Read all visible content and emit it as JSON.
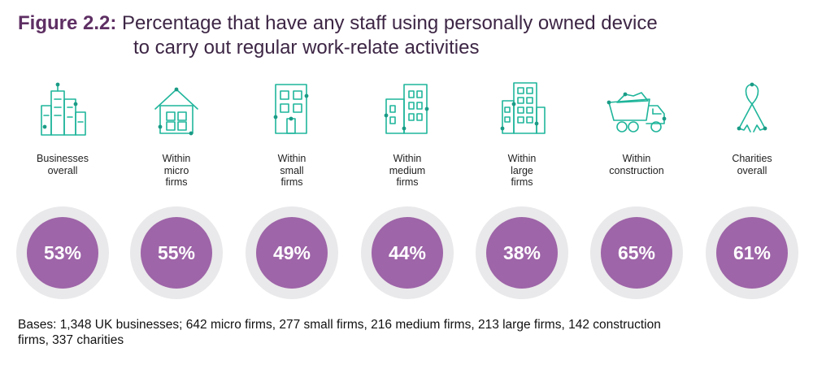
{
  "title": {
    "figure_label": "Figure 2.2:",
    "line1": "Percentage that have any staff using personally owned device",
    "line2": "to carry out regular work-relate activities"
  },
  "chart_data": {
    "type": "table",
    "title": "Percentage that have any staff using personally owned device to carry out regular work-relate activities",
    "categories": [
      "Businesses overall",
      "Within micro firms",
      "Within small firms",
      "Within medium firms",
      "Within large firms",
      "Within construction",
      "Charities overall"
    ],
    "values": [
      53,
      55,
      49,
      44,
      38,
      65,
      61
    ],
    "unit": "%"
  },
  "groups": [
    {
      "label_lines": [
        "Businesses",
        "overall"
      ],
      "value_text": "53%",
      "icon": "city-buildings-icon"
    },
    {
      "label_lines": [
        "Within",
        "micro",
        "firms"
      ],
      "value_text": "55%",
      "icon": "house-icon"
    },
    {
      "label_lines": [
        "Within",
        "small",
        "firms"
      ],
      "value_text": "49%",
      "icon": "small-building-icon"
    },
    {
      "label_lines": [
        "Within",
        "medium",
        "firms"
      ],
      "value_text": "44%",
      "icon": "medium-building-icon"
    },
    {
      "label_lines": [
        "Within",
        "large",
        "firms"
      ],
      "value_text": "38%",
      "icon": "large-building-icon"
    },
    {
      "label_lines": [
        "Within",
        "construction"
      ],
      "value_text": "65%",
      "icon": "dump-truck-icon"
    },
    {
      "label_lines": [
        "Charities",
        "overall"
      ],
      "value_text": "61%",
      "icon": "ribbon-icon"
    }
  ],
  "colors": {
    "accent_purple": "#9e65a8",
    "ring_grey": "#e9e8ea",
    "icon_teal": "#1fb59b",
    "title_purple": "#5e2f63"
  },
  "footnote": {
    "line1": "Bases: 1,348 UK businesses; 642 micro firms, 277 small firms, 216 medium firms, 213 large firms, 142 construction",
    "line2": "firms, 337 charities"
  }
}
